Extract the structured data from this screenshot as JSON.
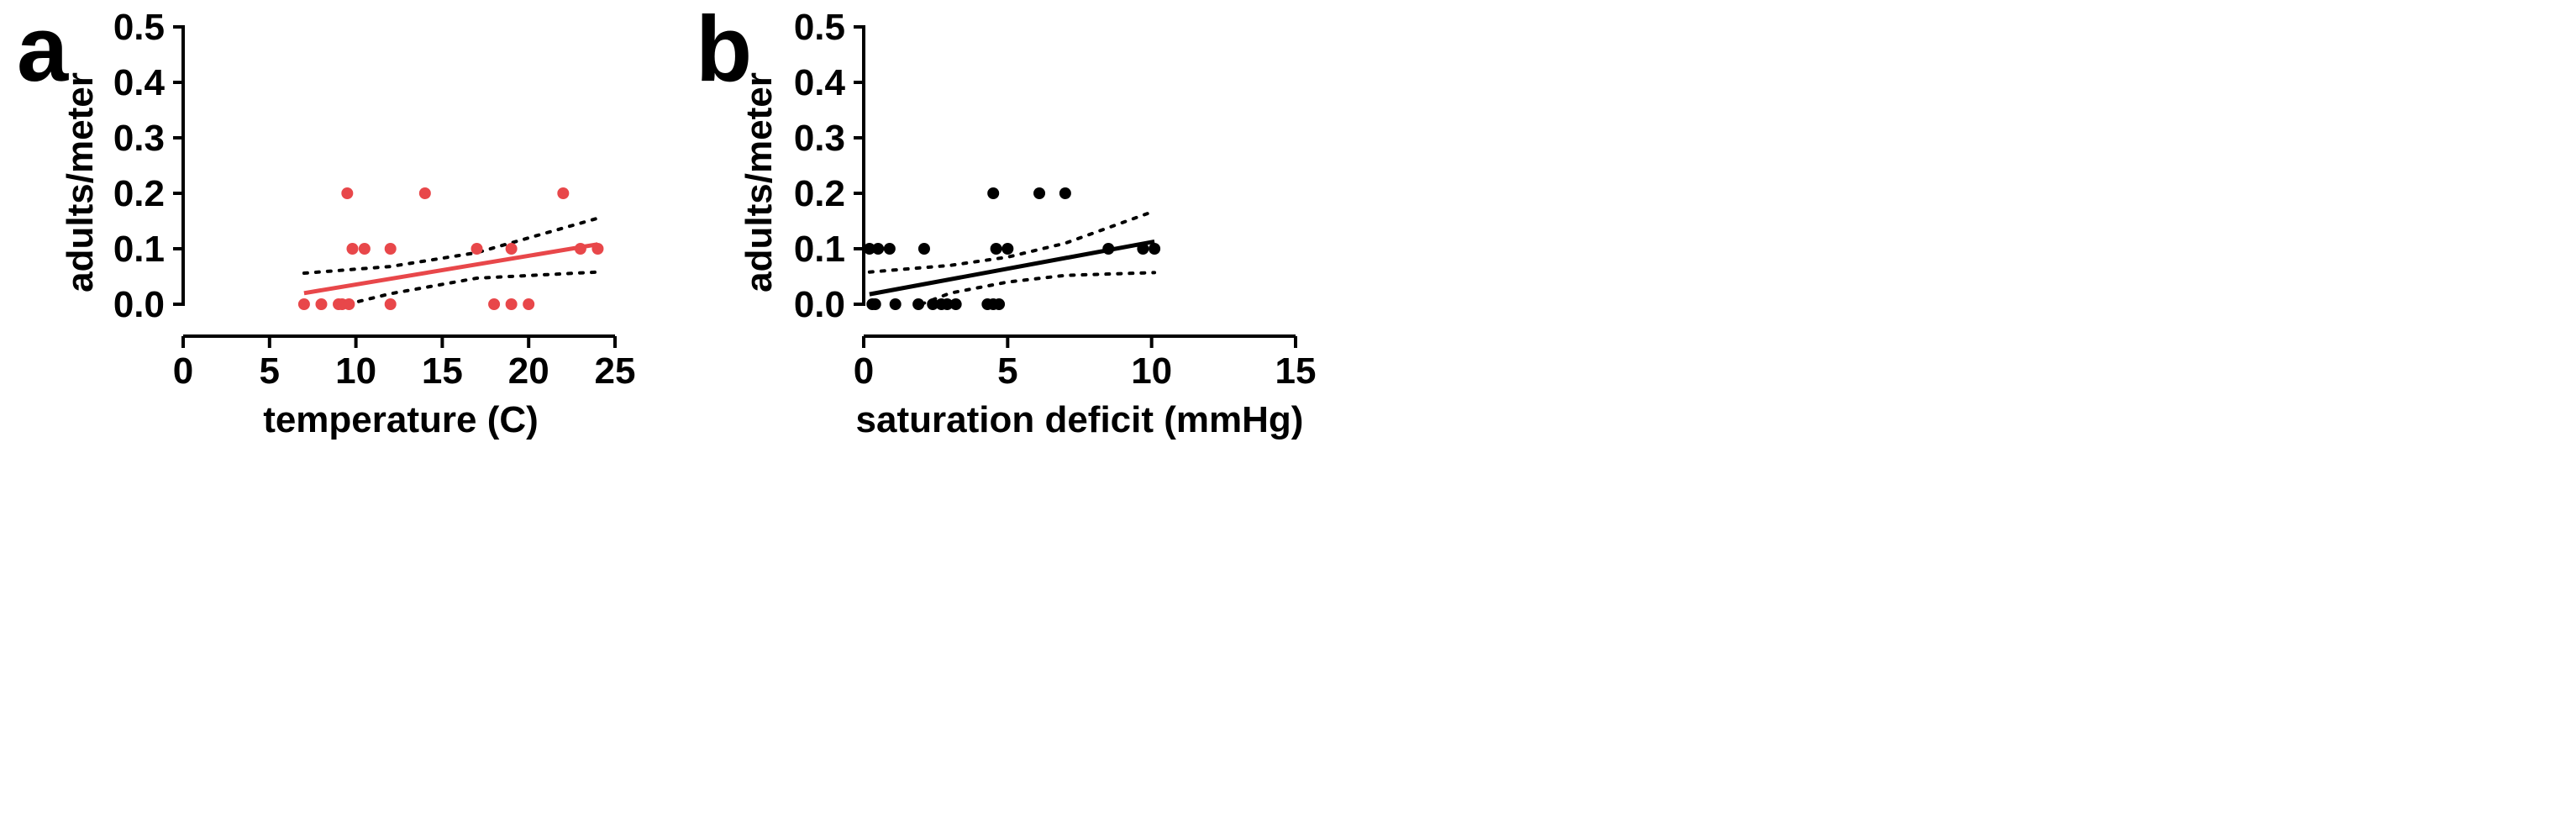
{
  "chart_data": [
    {
      "type": "scatter",
      "panel_label": "a",
      "xlabel": "temperature (C)",
      "ylabel": "adults/meter",
      "xlim": [
        0,
        25
      ],
      "ylim": [
        0,
        0.5
      ],
      "x_ticks": [
        "0",
        "5",
        "10",
        "15",
        "20",
        "25"
      ],
      "y_ticks": [
        "0.0",
        "0.1",
        "0.2",
        "0.3",
        "0.4",
        "0.5"
      ],
      "color": "#e8474a",
      "points": [
        {
          "x": 7,
          "y": 0
        },
        {
          "x": 8,
          "y": 0
        },
        {
          "x": 9,
          "y": 0
        },
        {
          "x": 9.2,
          "y": 0
        },
        {
          "x": 9.6,
          "y": 0
        },
        {
          "x": 12,
          "y": 0
        },
        {
          "x": 18,
          "y": 0
        },
        {
          "x": 19,
          "y": 0
        },
        {
          "x": 20,
          "y": 0
        },
        {
          "x": 9.8,
          "y": 0.1
        },
        {
          "x": 10.5,
          "y": 0.1
        },
        {
          "x": 12,
          "y": 0.1
        },
        {
          "x": 17,
          "y": 0.1
        },
        {
          "x": 19,
          "y": 0.1
        },
        {
          "x": 23,
          "y": 0.1
        },
        {
          "x": 24,
          "y": 0.1
        },
        {
          "x": 9.5,
          "y": 0.2
        },
        {
          "x": 14,
          "y": 0.2
        },
        {
          "x": 22,
          "y": 0.2
        }
      ],
      "fit_line": {
        "x": [
          7,
          24
        ],
        "y": [
          0.02,
          0.108
        ]
      },
      "ci_upper": {
        "x": [
          7,
          12,
          17,
          24
        ],
        "y": [
          0.056,
          0.068,
          0.093,
          0.155
        ]
      },
      "ci_lower": {
        "x": [
          9.5,
          12,
          17,
          24
        ],
        "y": [
          0.0,
          0.019,
          0.047,
          0.058
        ]
      }
    },
    {
      "type": "scatter",
      "panel_label": "b",
      "xlabel": "saturation deficit (mmHg)",
      "ylabel": "adults/meter",
      "xlim": [
        0,
        15
      ],
      "ylim": [
        0,
        0.5
      ],
      "x_ticks": [
        "0",
        "5",
        "10",
        "15"
      ],
      "y_ticks": [
        "0.0",
        "0.1",
        "0.2",
        "0.3",
        "0.4",
        "0.5"
      ],
      "color": "#000000",
      "points": [
        {
          "x": 0.3,
          "y": 0
        },
        {
          "x": 0.4,
          "y": 0
        },
        {
          "x": 1.1,
          "y": 0
        },
        {
          "x": 1.9,
          "y": 0
        },
        {
          "x": 2.4,
          "y": 0
        },
        {
          "x": 2.7,
          "y": 0
        },
        {
          "x": 2.9,
          "y": 0
        },
        {
          "x": 3.2,
          "y": 0
        },
        {
          "x": 4.3,
          "y": 0
        },
        {
          "x": 4.5,
          "y": 0
        },
        {
          "x": 4.7,
          "y": 0
        },
        {
          "x": 0.2,
          "y": 0.1
        },
        {
          "x": 0.5,
          "y": 0.1
        },
        {
          "x": 0.9,
          "y": 0.1
        },
        {
          "x": 2.1,
          "y": 0.1
        },
        {
          "x": 4.6,
          "y": 0.1
        },
        {
          "x": 5.0,
          "y": 0.1
        },
        {
          "x": 8.5,
          "y": 0.1
        },
        {
          "x": 9.7,
          "y": 0.1
        },
        {
          "x": 10.1,
          "y": 0.1
        },
        {
          "x": 4.5,
          "y": 0.2
        },
        {
          "x": 6.1,
          "y": 0.2
        },
        {
          "x": 7.0,
          "y": 0.2
        }
      ],
      "fit_line": {
        "x": [
          0.2,
          10.1
        ],
        "y": [
          0.018,
          0.113
        ]
      },
      "ci_upper": {
        "x": [
          0.2,
          3,
          5,
          7,
          10.1
        ],
        "y": [
          0.058,
          0.07,
          0.085,
          0.11,
          0.168
        ]
      },
      "ci_lower": {
        "x": [
          2,
          3,
          5,
          7,
          10.1
        ],
        "y": [
          0.0,
          0.02,
          0.04,
          0.052,
          0.057
        ]
      }
    }
  ]
}
